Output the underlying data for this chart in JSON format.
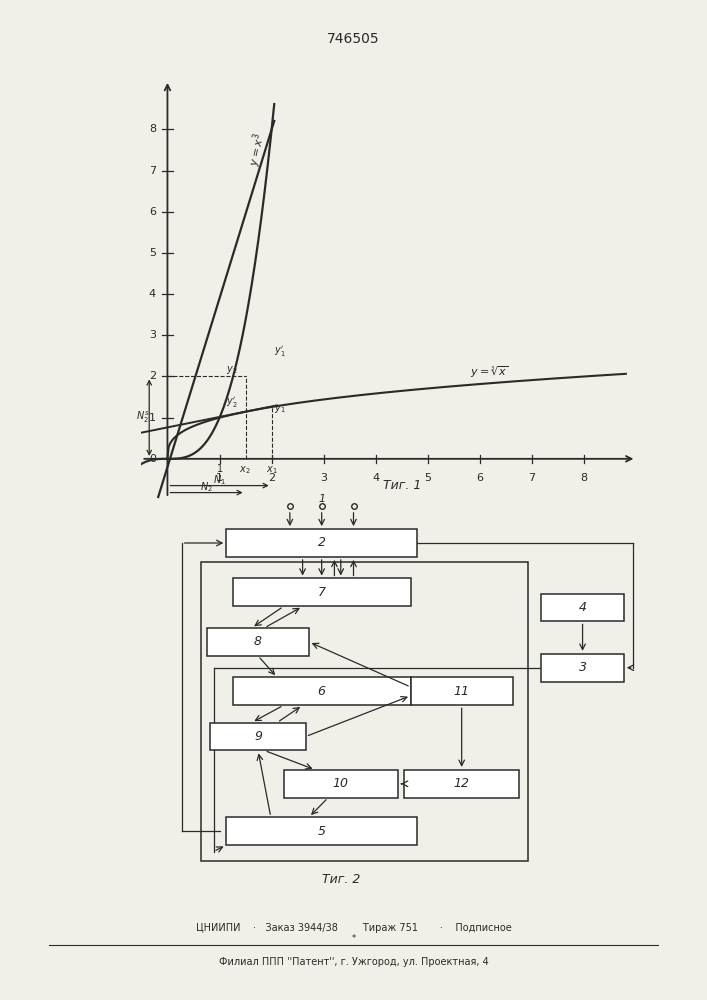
{
  "title": "746505",
  "fig1_label": "Τиг. 1",
  "fig2_label": "Τиг. 2",
  "bottom_text1": "ЦНИИПИ    ·   Заказ 3944/38        Тираж 751       ·    Подписное",
  "bottom_text2": "Филиал ППП ''Патент'', г. Ужгород, ул. Проектная, 4",
  "bg_color": "#f0efe8",
  "line_color": "#2a2a2a"
}
